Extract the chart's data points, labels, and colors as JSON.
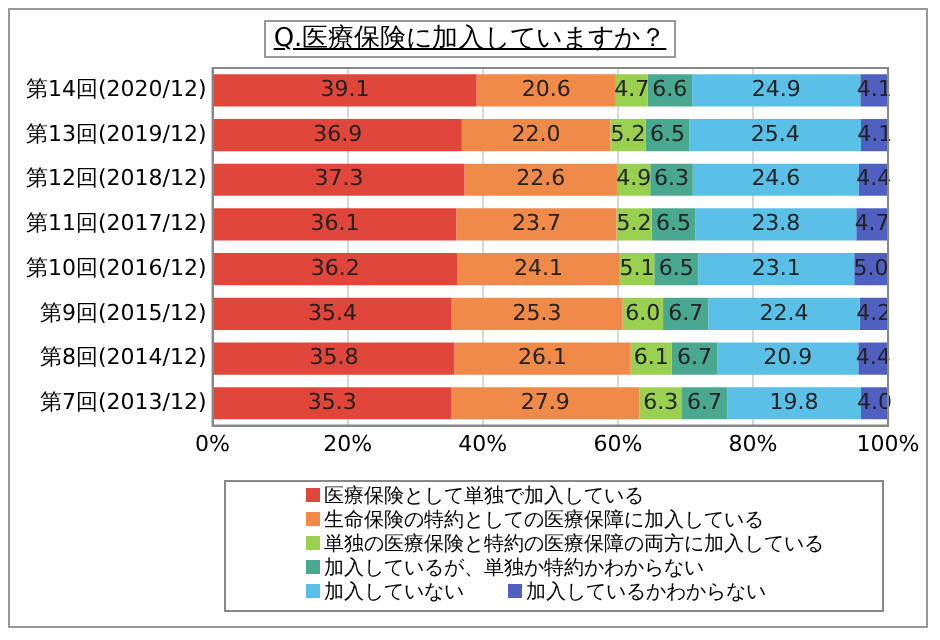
{
  "chart_data": {
    "type": "bar",
    "orientation": "horizontal",
    "stacked": true,
    "title": "Q.医療保険に加入していますか？",
    "categories": [
      "第14回(2020/12)",
      "第13回(2019/12)",
      "第12回(2018/12)",
      "第11回(2017/12)",
      "第10回(2016/12)",
      "第9回(2015/12)",
      "第8回(2014/12)",
      "第7回(2013/12)"
    ],
    "series": [
      {
        "name": "医療保険として単独で加入している",
        "color": "#e0463a",
        "values": [
          39.1,
          36.9,
          37.3,
          36.1,
          36.2,
          35.4,
          35.8,
          35.3
        ],
        "value_labels": [
          "39.1",
          "36.9",
          "37.3",
          "36.1",
          "36.2",
          "35.4",
          "35.8",
          "35.3"
        ]
      },
      {
        "name": "生命保険の特約としての医療保障に加入している",
        "color": "#f08a48",
        "values": [
          20.6,
          22.0,
          22.6,
          23.7,
          24.1,
          25.3,
          26.1,
          27.9
        ],
        "value_labels": [
          "20.6",
          "22.0",
          "22.6",
          "23.7",
          "24.1",
          "25.3",
          "26.1",
          "27.9"
        ]
      },
      {
        "name": "単独の医療保険と特約の医療保障の両方に加入している",
        "color": "#9ad050",
        "values": [
          4.7,
          5.2,
          4.9,
          5.2,
          5.1,
          6.0,
          6.1,
          6.3
        ],
        "value_labels": [
          "4.7",
          "5.2",
          "4.9",
          "5.2",
          "5.1",
          "6.0",
          "6.1",
          "6.3"
        ]
      },
      {
        "name": "加入しているが、単独か特約かわからない",
        "color": "#4aa890",
        "values": [
          6.6,
          6.5,
          6.3,
          6.5,
          6.5,
          6.7,
          6.7,
          6.7
        ],
        "value_labels": [
          "6.6",
          "6.5",
          "6.3",
          "6.5",
          "6.5",
          "6.7",
          "6.7",
          "6.7"
        ]
      },
      {
        "name": "加入していない",
        "color": "#5bc0e8",
        "values": [
          24.9,
          25.4,
          24.6,
          23.8,
          23.1,
          22.4,
          20.9,
          19.8
        ],
        "value_labels": [
          "24.9",
          "25.4",
          "24.6",
          "23.8",
          "23.1",
          "22.4",
          "20.9",
          "19.8"
        ]
      },
      {
        "name": "加入しているかわからない",
        "color": "#5060c0",
        "values": [
          4.1,
          4.1,
          4.4,
          4.7,
          5.0,
          4.2,
          4.4,
          4.0
        ],
        "value_labels": [
          "4.1",
          "4.1",
          "4.4",
          "4.7",
          "5.0",
          "4.2",
          "4.4",
          "4.0"
        ]
      }
    ],
    "xlim": [
      0,
      100
    ],
    "xticks": [
      {
        "value": 0,
        "label": "0%"
      },
      {
        "value": 20,
        "label": "20%"
      },
      {
        "value": 40,
        "label": "40%"
      },
      {
        "value": 60,
        "label": "60%"
      },
      {
        "value": 80,
        "label": "80%"
      },
      {
        "value": 100,
        "label": "100%"
      }
    ],
    "grid": "x",
    "legend": "bottom"
  }
}
